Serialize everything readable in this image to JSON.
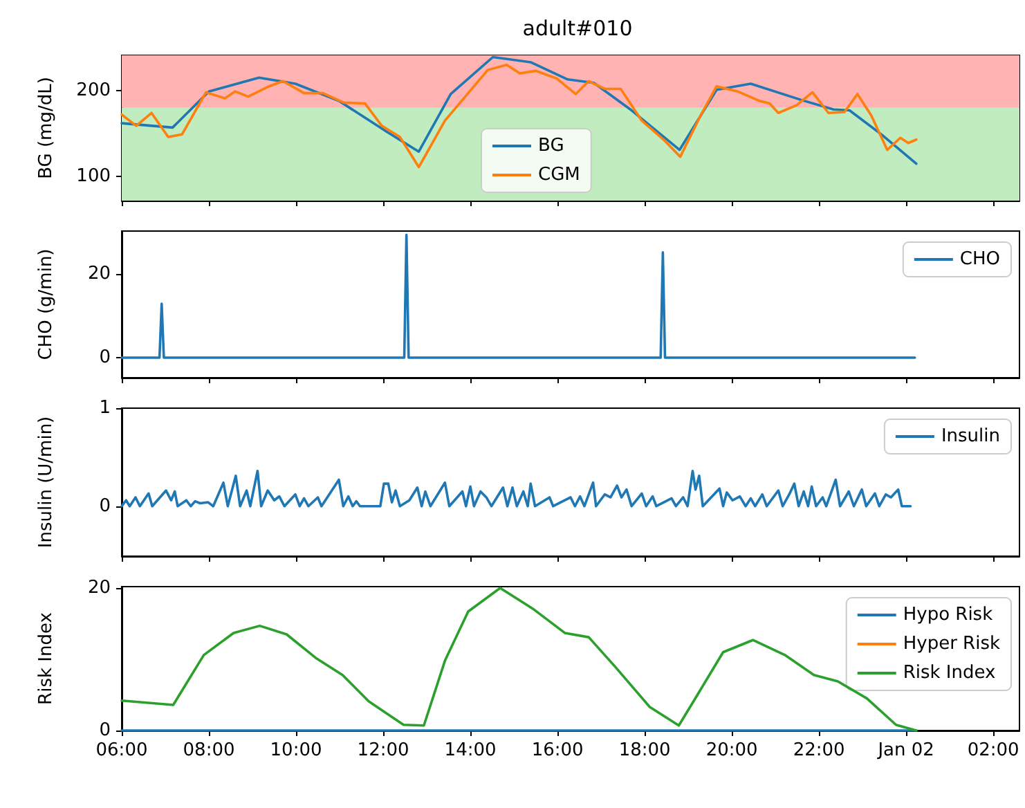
{
  "chart_data": [
    {
      "type": "line",
      "title": "adult#010",
      "ylabel": "BG (mg/dL)",
      "xlim": [
        "--01-01T06:00",
        "--01-02T02:36"
      ],
      "ylim": [
        72,
        241
      ],
      "yticks": [
        100,
        200
      ],
      "xticks": [
        {
          "value": "--01-01T06:00",
          "label": null
        },
        {
          "value": "--01-01T08:00",
          "label": null
        },
        {
          "value": "--01-01T10:00",
          "label": null
        },
        {
          "value": "--01-01T12:00",
          "label": null
        },
        {
          "value": "--01-01T14:00",
          "label": null
        },
        {
          "value": "--01-01T16:00",
          "label": null
        },
        {
          "value": "--01-01T18:00",
          "label": null
        },
        {
          "value": "--01-01T20:00",
          "label": null
        },
        {
          "value": "--01-01T22:00",
          "label": null
        },
        {
          "value": "--01-02T00:00",
          "label": null
        },
        {
          "value": "--01-02T02:00",
          "label": null
        }
      ],
      "tick_labels": "y",
      "grid": false,
      "legend": "bottom",
      "bands": [
        {
          "axis": "y",
          "from": 72,
          "to": 180,
          "color": "#c0ecc0"
        },
        {
          "axis": "y",
          "from": 180,
          "to": 241,
          "color": "#ffb3b3"
        }
      ],
      "series": [
        {
          "name": "BG",
          "color": "#1f77b4",
          "x": [
            "--01-01T06:00",
            "--01-01T07:10",
            "--01-01T08:00",
            "--01-01T09:09",
            "--01-01T09:59",
            "--01-01T10:59",
            "--01-01T12:05",
            "--01-01T12:49",
            "--01-01T13:33",
            "--01-01T14:31",
            "--01-01T15:23",
            "--01-01T16:14",
            "--01-01T16:50",
            "--01-01T17:42",
            "--01-01T18:48",
            "--01-01T19:39",
            "--01-01T20:26",
            "--01-01T21:36",
            "--01-01T22:20",
            "--01-01T22:42",
            "--01-01T23:26",
            "--01-02T00:14"
          ],
          "values": [
            162,
            157,
            199,
            215,
            208,
            188,
            152,
            129,
            196,
            239,
            233,
            213,
            209,
            177,
            131,
            201,
            208,
            189,
            178,
            177,
            149,
            115
          ]
        },
        {
          "name": "CGM",
          "color": "#ff7f0e",
          "x": [
            "--01-01T06:00",
            "--01-01T06:20",
            "--01-01T06:41",
            "--01-01T07:04",
            "--01-01T07:23",
            "--01-01T07:56",
            "--01-01T08:22",
            "--01-01T08:36",
            "--01-01T08:54",
            "--01-01T09:23",
            "--01-01T09:42",
            "--01-01T10:11",
            "--01-01T10:37",
            "--01-01T11:06",
            "--01-01T11:35",
            "--01-01T11:58",
            "--01-01T12:23",
            "--01-01T12:49",
            "--01-01T13:25",
            "--01-01T14:02",
            "--01-01T14:24",
            "--01-01T14:50",
            "--01-01T15:08",
            "--01-01T15:30",
            "--01-01T15:59",
            "--01-01T16:25",
            "--01-01T16:43",
            "--01-01T17:05",
            "--01-01T17:27",
            "--01-01T17:56",
            "--01-01T18:26",
            "--01-01T18:49",
            "--01-01T19:17",
            "--01-01T19:39",
            "--01-01T20:08",
            "--01-01T20:38",
            "--01-01T20:52",
            "--01-01T21:04",
            "--01-01T21:29",
            "--01-01T21:51",
            "--01-01T22:13",
            "--01-01T22:35",
            "--01-01T22:53",
            "--01-01T23:12",
            "--01-01T23:34",
            "--01-01T23:52",
            "--01-02T00:03",
            "--01-02T00:14"
          ],
          "values": [
            172,
            159,
            174,
            146,
            149,
            198,
            191,
            199,
            193,
            205,
            211,
            197,
            197,
            186,
            185,
            159,
            146,
            111,
            165,
            202,
            224,
            230,
            220,
            223,
            214,
            196,
            211,
            202,
            202,
            165,
            143,
            123,
            171,
            205,
            199,
            188,
            185,
            174,
            183,
            198,
            174,
            175,
            196,
            171,
            131,
            145,
            139,
            143
          ]
        }
      ]
    },
    {
      "type": "line",
      "ylabel": "CHO (g/min)",
      "xlim": [
        "--01-01T06:00",
        "--01-02T02:36"
      ],
      "ylim": [
        -4.8,
        30.3
      ],
      "yticks": [
        0,
        20
      ],
      "xticks": [
        {
          "value": "--01-01T06:00",
          "label": null
        },
        {
          "value": "--01-01T08:00",
          "label": null
        },
        {
          "value": "--01-01T10:00",
          "label": null
        },
        {
          "value": "--01-01T12:00",
          "label": null
        },
        {
          "value": "--01-01T14:00",
          "label": null
        },
        {
          "value": "--01-01T16:00",
          "label": null
        },
        {
          "value": "--01-01T18:00",
          "label": null
        },
        {
          "value": "--01-01T20:00",
          "label": null
        },
        {
          "value": "--01-01T22:00",
          "label": null
        },
        {
          "value": "--01-02T00:00",
          "label": null
        },
        {
          "value": "--01-02T02:00",
          "label": null
        }
      ],
      "tick_labels": "y",
      "grid": false,
      "legend": "top right",
      "series": [
        {
          "name": "CHO",
          "color": "#1f77b4",
          "x": [
            "--01-01T06:00",
            "--01-01T06:52",
            "--01-01T06:55",
            "--01-01T06:58",
            "--01-01T12:29",
            "--01-01T12:32",
            "--01-01T12:35",
            "--01-01T18:22",
            "--01-01T18:25",
            "--01-01T18:28",
            "--01-02T00:12"
          ],
          "values": [
            0,
            0,
            12.9,
            0,
            0,
            29.4,
            0,
            0,
            25.2,
            0,
            0
          ]
        }
      ]
    },
    {
      "type": "line",
      "ylabel": "Insulin (U/min)",
      "xlim": [
        "--01-01T06:00",
        "--01-02T02:36"
      ],
      "ylim": [
        -0.51,
        1
      ],
      "yticks": [
        0,
        1
      ],
      "xticks": [
        {
          "value": "--01-01T06:00",
          "label": null
        },
        {
          "value": "--01-01T08:00",
          "label": null
        },
        {
          "value": "--01-01T10:00",
          "label": null
        },
        {
          "value": "--01-01T12:00",
          "label": null
        },
        {
          "value": "--01-01T14:00",
          "label": null
        },
        {
          "value": "--01-01T16:00",
          "label": null
        },
        {
          "value": "--01-01T18:00",
          "label": null
        },
        {
          "value": "--01-01T20:00",
          "label": null
        },
        {
          "value": "--01-01T22:00",
          "label": null
        },
        {
          "value": "--01-02T00:00",
          "label": null
        },
        {
          "value": "--01-02T02:00",
          "label": null
        }
      ],
      "tick_labels": "y",
      "grid": false,
      "legend": "top right",
      "series": [
        {
          "name": "Insulin",
          "color": "#1f77b4",
          "x": [
            "--01-01T06:00",
            "--01-01T06:06",
            "--01-01T06:11",
            "--01-01T06:19",
            "--01-01T06:25",
            "--01-01T06:37",
            "--01-01T06:42",
            "--01-01T07:01",
            "--01-01T07:08",
            "--01-01T07:13",
            "--01-01T07:17",
            "--01-01T07:29",
            "--01-01T07:35",
            "--01-01T07:41",
            "--01-01T07:48",
            "--01-01T07:59",
            "--01-01T08:06",
            "--01-01T08:20",
            "--01-01T08:26",
            "--01-01T08:37",
            "--01-01T08:43",
            "--01-01T08:52",
            "--01-01T08:57",
            "--01-01T09:07",
            "--01-01T09:12",
            "--01-01T09:21",
            "--01-01T09:30",
            "--01-01T09:37",
            "--01-01T09:44",
            "--01-01T09:59",
            "--01-01T10:05",
            "--01-01T10:11",
            "--01-01T10:17",
            "--01-01T10:30",
            "--01-01T10:35",
            "--01-01T10:59",
            "--01-01T11:05",
            "--01-01T11:12",
            "--01-01T11:18",
            "--01-01T11:23",
            "--01-01T11:28",
            "--01-01T11:56",
            "--01-01T12:01",
            "--01-01T12:07",
            "--01-01T12:12",
            "--01-01T12:17",
            "--01-01T12:23",
            "--01-01T12:36",
            "--01-01T12:47",
            "--01-01T12:53",
            "--01-01T12:58",
            "--01-01T13:05",
            "--01-01T13:25",
            "--01-01T13:31",
            "--01-01T13:49",
            "--01-01T13:54",
            "--01-01T14:00",
            "--01-01T14:05",
            "--01-01T14:14",
            "--01-01T14:22",
            "--01-01T14:29",
            "--01-01T14:45",
            "--01-01T14:51",
            "--01-01T14:58",
            "--01-01T15:04",
            "--01-01T15:13",
            "--01-01T15:19",
            "--01-01T15:23",
            "--01-01T15:29",
            "--01-01T15:49",
            "--01-01T15:54",
            "--01-01T16:18",
            "--01-01T16:24",
            "--01-01T16:31",
            "--01-01T16:37",
            "--01-01T16:49",
            "--01-01T16:53",
            "--01-01T17:05",
            "--01-01T17:13",
            "--01-01T17:22",
            "--01-01T17:28",
            "--01-01T17:35",
            "--01-01T17:42",
            "--01-01T17:56",
            "--01-01T18:02",
            "--01-01T18:11",
            "--01-01T18:16",
            "--01-01T18:37",
            "--01-01T18:43",
            "--01-01T18:53",
            "--01-01T18:59",
            "--01-01T19:06",
            "--01-01T19:10",
            "--01-01T19:15",
            "--01-01T19:20",
            "--01-01T19:43",
            "--01-01T19:48",
            "--01-01T19:53",
            "--01-01T20:01",
            "--01-01T20:11",
            "--01-01T20:19",
            "--01-01T20:26",
            "--01-01T20:32",
            "--01-01T20:42",
            "--01-01T20:48",
            "--01-01T21:04",
            "--01-01T21:10",
            "--01-01T21:19",
            "--01-01T21:26",
            "--01-01T21:32",
            "--01-01T21:39",
            "--01-01T21:45",
            "--01-01T21:50",
            "--01-01T21:56",
            "--01-01T22:05",
            "--01-01T22:10",
            "--01-01T22:23",
            "--01-01T22:29",
            "--01-01T22:41",
            "--01-01T22:48",
            "--01-01T22:59",
            "--01-01T23:05",
            "--01-01T23:17",
            "--01-01T23:23",
            "--01-01T23:32",
            "--01-01T23:39",
            "--01-01T23:49",
            "--01-01T23:54",
            "--01-02T00:06"
          ],
          "values": [
            0,
            0.06,
            0,
            0.09,
            0,
            0.13,
            0,
            0.16,
            0.06,
            0.15,
            0,
            0.06,
            0,
            0.05,
            0.03,
            0.04,
            0,
            0.24,
            0,
            0.31,
            0,
            0.16,
            0,
            0.36,
            0,
            0.16,
            0.06,
            0.1,
            0,
            0.12,
            0,
            0.08,
            0,
            0.09,
            0,
            0.27,
            0,
            0.1,
            0,
            0.05,
            0,
            0,
            0.23,
            0.23,
            0.04,
            0.16,
            0,
            0.06,
            0.19,
            0,
            0.15,
            0,
            0.24,
            0,
            0.15,
            0,
            0.2,
            0,
            0.15,
            0.09,
            0,
            0.19,
            0,
            0.19,
            0,
            0.15,
            0,
            0.23,
            0,
            0.09,
            0,
            0.09,
            0,
            0.1,
            0,
            0.24,
            0,
            0.12,
            0.09,
            0.21,
            0.09,
            0.17,
            0,
            0.13,
            0,
            0.1,
            0,
            0.08,
            0,
            0.09,
            0,
            0.36,
            0.17,
            0.31,
            0,
            0.18,
            0,
            0.14,
            0.06,
            0.1,
            0,
            0.08,
            0,
            0.12,
            0,
            0.16,
            0,
            0.12,
            0.23,
            0,
            0.15,
            0,
            0.2,
            0,
            0.09,
            0,
            0.27,
            0,
            0.15,
            0,
            0.17,
            0,
            0.13,
            0,
            0.12,
            0.09,
            0.17,
            0,
            0
          ]
        }
      ]
    },
    {
      "type": "line",
      "ylabel": "Risk Index",
      "xlim": [
        "--01-01T06:00",
        "--01-02T02:36"
      ],
      "ylim": [
        0,
        20.2
      ],
      "yticks": [
        0,
        20
      ],
      "xticks": [
        {
          "value": "--01-01T06:00",
          "label": "06:00"
        },
        {
          "value": "--01-01T08:00",
          "label": "08:00"
        },
        {
          "value": "--01-01T10:00",
          "label": "10:00"
        },
        {
          "value": "--01-01T12:00",
          "label": "12:00"
        },
        {
          "value": "--01-01T14:00",
          "label": "14:00"
        },
        {
          "value": "--01-01T16:00",
          "label": "16:00"
        },
        {
          "value": "--01-01T18:00",
          "label": "18:00"
        },
        {
          "value": "--01-01T20:00",
          "label": "20:00"
        },
        {
          "value": "--01-01T22:00",
          "label": "22:00"
        },
        {
          "value": "--01-02T00:00",
          "label": "Jan 02"
        },
        {
          "value": "--01-02T02:00",
          "label": "02:00"
        }
      ],
      "grid": false,
      "legend": "top right",
      "series": [
        {
          "name": "Hypo Risk",
          "color": "#1f77b4",
          "x": [
            "--01-01T06:00",
            "--01-02T00:14"
          ],
          "values": [
            0,
            0
          ]
        },
        {
          "name": "Hyper Risk",
          "color": "#ff7f0e"
        },
        {
          "name": "Risk Index",
          "color": "#2ca02c",
          "x": [
            "--01-01T06:00",
            "--01-01T07:11",
            "--01-01T07:53",
            "--01-01T08:34",
            "--01-01T09:10",
            "--01-01T09:47",
            "--01-01T10:27",
            "--01-01T11:04",
            "--01-01T11:40",
            "--01-01T12:28",
            "--01-01T12:56",
            "--01-01T13:25",
            "--01-01T13:57",
            "--01-01T14:41",
            "--01-01T15:26",
            "--01-01T16:10",
            "--01-01T16:43",
            "--01-01T17:19",
            "--01-01T18:07",
            "--01-01T18:47",
            "--01-01T19:12",
            "--01-01T19:48",
            "--01-01T20:29",
            "--01-01T21:13",
            "--01-01T21:53",
            "--01-01T22:26",
            "--01-01T23:06",
            "--01-01T23:46",
            "--01-02T00:14"
          ],
          "values": [
            4.2,
            3.6,
            10.6,
            13.7,
            14.7,
            13.5,
            10.2,
            7.8,
            4.1,
            0.8,
            0.7,
            9.8,
            16.7,
            20.0,
            17.1,
            13.7,
            13.1,
            9.0,
            3.3,
            0.7,
            4.9,
            11.0,
            12.7,
            10.6,
            7.8,
            6.9,
            4.5,
            0.8,
            0
          ]
        }
      ]
    }
  ]
}
